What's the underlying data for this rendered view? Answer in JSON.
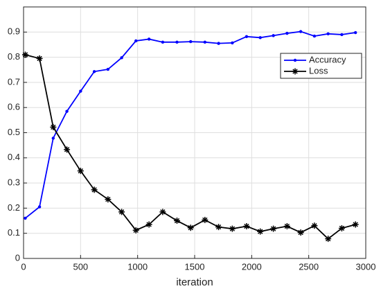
{
  "chart_data": {
    "type": "line",
    "x_label": "iteration",
    "x": [
      15,
      140,
      260,
      380,
      500,
      620,
      740,
      860,
      985,
      1100,
      1220,
      1345,
      1465,
      1590,
      1710,
      1830,
      1955,
      2075,
      2190,
      2310,
      2430,
      2550,
      2670,
      2790,
      2910
    ],
    "series": [
      {
        "name": "Accuracy",
        "color": "#0000ff",
        "marker": "dot",
        "values": [
          0.16,
          0.205,
          0.478,
          0.585,
          0.665,
          0.743,
          0.752,
          0.798,
          0.865,
          0.872,
          0.86,
          0.86,
          0.862,
          0.86,
          0.855,
          0.857,
          0.882,
          0.878,
          0.886,
          0.895,
          0.902,
          0.884,
          0.893,
          0.89,
          0.898
        ]
      },
      {
        "name": "Loss",
        "color": "#000000",
        "marker": "asterisk",
        "values": [
          0.81,
          0.795,
          0.522,
          0.433,
          0.348,
          0.273,
          0.235,
          0.185,
          0.112,
          0.135,
          0.185,
          0.15,
          0.122,
          0.153,
          0.125,
          0.118,
          0.128,
          0.107,
          0.118,
          0.128,
          0.103,
          0.13,
          0.078,
          0.12,
          0.135
        ]
      }
    ],
    "xlim": [
      0,
      3000
    ],
    "xticks": [
      0,
      500,
      1000,
      1500,
      2000,
      2500,
      3000
    ],
    "ylim": [
      0,
      1
    ],
    "yticks": [
      0,
      0.1,
      0.2,
      0.3,
      0.4,
      0.5,
      0.6,
      0.7,
      0.8,
      0.9
    ],
    "grid": true,
    "legend": "upper right"
  }
}
